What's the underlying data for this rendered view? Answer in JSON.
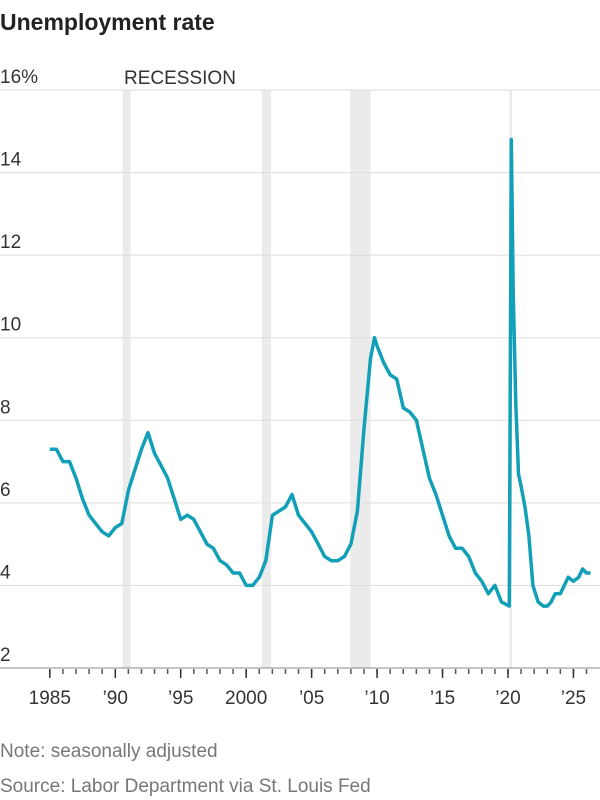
{
  "chart_data": {
    "type": "line",
    "title": "Unemployment rate",
    "recession_label": "RECESSION",
    "note": "Note: seasonally adjusted",
    "source": "Source: Labor Department via St. Louis Fed",
    "recessions": [
      [
        1990.58,
        1991.17
      ],
      [
        2001.2,
        2001.9
      ],
      [
        2007.95,
        2009.5
      ],
      [
        2020.1,
        2020.3
      ]
    ],
    "xlim": [
      1984.25,
      2026.8
    ],
    "ylim": [
      2,
      16
    ],
    "yticks": [
      2,
      4,
      6,
      8,
      10,
      12,
      14,
      {
        "value": 16,
        "label": "16%"
      }
    ],
    "xticks": [
      1985,
      {
        "value": 1990,
        "label": "’90"
      },
      {
        "value": 1995,
        "label": "’95"
      },
      2000,
      {
        "value": 2005,
        "label": "’05"
      },
      {
        "value": 2010,
        "label": "’10"
      },
      {
        "value": 2015,
        "label": "’15"
      },
      {
        "value": 2020,
        "label": "’20"
      },
      {
        "value": 2025,
        "label": "’25"
      }
    ],
    "xminorticks": [
      1985,
      1986,
      1987,
      1988,
      1989,
      1990,
      1991,
      1992,
      1993,
      1994,
      1995,
      1996,
      1997,
      1998,
      1999,
      2000,
      2001,
      2002,
      2003,
      2004,
      2005,
      2006,
      2007,
      2008,
      2009,
      2010,
      2011,
      2012,
      2013,
      2014,
      2015,
      2016,
      2017,
      2018,
      2019,
      2020,
      2021,
      2022,
      2023,
      2024,
      2025,
      2026
    ],
    "grid": true,
    "color": "#129fb8",
    "x": [
      1985.0,
      1985.5,
      1986.0,
      1986.5,
      1987.0,
      1987.5,
      1988.0,
      1988.5,
      1989.0,
      1989.5,
      1990.0,
      1990.5,
      1991.0,
      1991.5,
      1992.0,
      1992.5,
      1993.0,
      1993.5,
      1994.0,
      1994.5,
      1995.0,
      1995.5,
      1996.0,
      1996.5,
      1997.0,
      1997.5,
      1998.0,
      1998.5,
      1999.0,
      1999.5,
      2000.0,
      2000.5,
      2001.0,
      2001.5,
      2002.0,
      2002.5,
      2003.0,
      2003.5,
      2004.0,
      2004.5,
      2005.0,
      2005.5,
      2006.0,
      2006.5,
      2007.0,
      2007.5,
      2008.0,
      2008.5,
      2009.0,
      2009.5,
      2009.8,
      2010.0,
      2010.5,
      2011.0,
      2011.5,
      2012.0,
      2012.5,
      2013.0,
      2013.5,
      2014.0,
      2014.5,
      2015.0,
      2015.5,
      2016.0,
      2016.5,
      2017.0,
      2017.5,
      2018.0,
      2018.5,
      2019.0,
      2019.5,
      2020.1,
      2020.25,
      2020.4,
      2020.6,
      2020.8,
      2021.0,
      2021.3,
      2021.6,
      2021.9,
      2022.3,
      2022.7,
      2023.0,
      2023.3,
      2023.6,
      2024.0,
      2024.3,
      2024.6,
      2025.0,
      2025.4,
      2025.7,
      2026.0,
      2026.3
    ],
    "values": [
      7.3,
      7.3,
      7.0,
      7.0,
      6.6,
      6.1,
      5.7,
      5.5,
      5.3,
      5.2,
      5.4,
      5.5,
      6.3,
      6.8,
      7.3,
      7.7,
      7.2,
      6.9,
      6.6,
      6.1,
      5.6,
      5.7,
      5.6,
      5.3,
      5.0,
      4.9,
      4.6,
      4.5,
      4.3,
      4.3,
      4.0,
      4.0,
      4.2,
      4.6,
      5.7,
      5.8,
      5.9,
      6.2,
      5.7,
      5.5,
      5.3,
      5.0,
      4.7,
      4.6,
      4.6,
      4.7,
      5.0,
      5.8,
      7.8,
      9.5,
      10.0,
      9.8,
      9.4,
      9.1,
      9.0,
      8.3,
      8.2,
      8.0,
      7.3,
      6.6,
      6.2,
      5.7,
      5.2,
      4.9,
      4.9,
      4.7,
      4.3,
      4.1,
      3.8,
      4.0,
      3.6,
      3.5,
      14.8,
      11.1,
      8.4,
      6.7,
      6.4,
      5.9,
      5.2,
      4.0,
      3.6,
      3.5,
      3.5,
      3.6,
      3.8,
      3.8,
      4.0,
      4.2,
      4.1,
      4.2,
      4.4,
      4.3,
      4.3
    ]
  }
}
